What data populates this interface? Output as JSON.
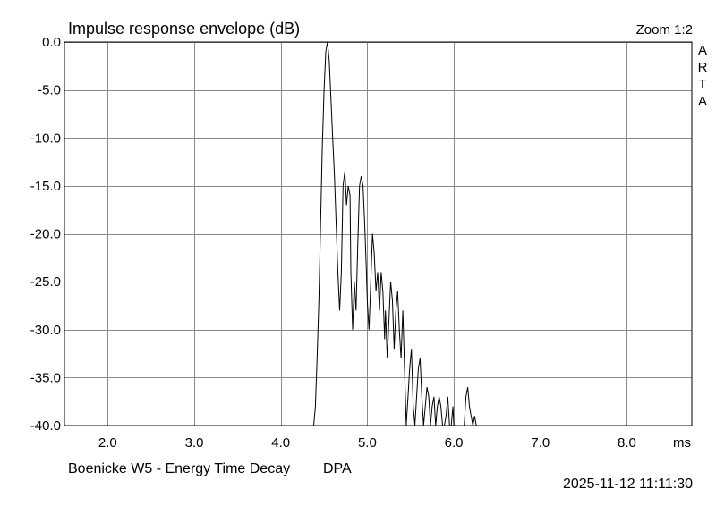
{
  "chart_data": {
    "type": "line",
    "title": "Impulse response envelope (dB)",
    "xlabel": "ms",
    "ylabel": "",
    "xlim": [
      1.5,
      8.75
    ],
    "ylim": [
      -40,
      0
    ],
    "x_ticks": [
      2.0,
      3.0,
      4.0,
      5.0,
      6.0,
      7.0,
      8.0
    ],
    "x_tick_labels": [
      "2.0",
      "3.0",
      "4.0",
      "5.0",
      "6.0",
      "7.0",
      "8.0"
    ],
    "y_ticks": [
      0,
      -5,
      -10,
      -15,
      -20,
      -25,
      -30,
      -35,
      -40
    ],
    "y_tick_labels": [
      "0.0",
      "-5.0",
      "-10.0",
      "-15.0",
      "-20.0",
      "-25.0",
      "-30.0",
      "-35.0",
      "-40.0"
    ],
    "grid": true,
    "series": [
      {
        "color": "#000000",
        "points": [
          [
            1.5,
            -40
          ],
          [
            4.38,
            -40
          ],
          [
            4.4,
            -38
          ],
          [
            4.42,
            -33
          ],
          [
            4.44,
            -27
          ],
          [
            4.46,
            -19
          ],
          [
            4.48,
            -11
          ],
          [
            4.5,
            -5
          ],
          [
            4.52,
            -1
          ],
          [
            4.54,
            0
          ],
          [
            4.56,
            -2
          ],
          [
            4.58,
            -6
          ],
          [
            4.6,
            -10
          ],
          [
            4.62,
            -14
          ],
          [
            4.64,
            -19
          ],
          [
            4.66,
            -24
          ],
          [
            4.68,
            -28
          ],
          [
            4.7,
            -24
          ],
          [
            4.72,
            -15
          ],
          [
            4.74,
            -13.5
          ],
          [
            4.76,
            -17
          ],
          [
            4.78,
            -15
          ],
          [
            4.8,
            -16
          ],
          [
            4.81,
            -24
          ],
          [
            4.83,
            -30
          ],
          [
            4.85,
            -25
          ],
          [
            4.87,
            -28
          ],
          [
            4.89,
            -21
          ],
          [
            4.91,
            -15
          ],
          [
            4.93,
            -14
          ],
          [
            4.95,
            -15
          ],
          [
            4.97,
            -19
          ],
          [
            4.99,
            -24
          ],
          [
            5.0,
            -27
          ],
          [
            5.02,
            -30
          ],
          [
            5.04,
            -25
          ],
          [
            5.06,
            -20
          ],
          [
            5.08,
            -22
          ],
          [
            5.1,
            -26
          ],
          [
            5.12,
            -24
          ],
          [
            5.14,
            -28
          ],
          [
            5.16,
            -24
          ],
          [
            5.18,
            -26
          ],
          [
            5.2,
            -31
          ],
          [
            5.21,
            -28
          ],
          [
            5.23,
            -33
          ],
          [
            5.25,
            -29
          ],
          [
            5.27,
            -25
          ],
          [
            5.29,
            -27
          ],
          [
            5.31,
            -32
          ],
          [
            5.33,
            -28
          ],
          [
            5.35,
            -26
          ],
          [
            5.37,
            -30
          ],
          [
            5.39,
            -33
          ],
          [
            5.41,
            -28
          ],
          [
            5.43,
            -34
          ],
          [
            5.45,
            -40
          ],
          [
            5.47,
            -37
          ],
          [
            5.49,
            -34
          ],
          [
            5.51,
            -32
          ],
          [
            5.53,
            -38
          ],
          [
            5.55,
            -40
          ],
          [
            5.57,
            -37
          ],
          [
            5.59,
            -34
          ],
          [
            5.61,
            -33
          ],
          [
            5.63,
            -37
          ],
          [
            5.65,
            -40
          ],
          [
            5.67,
            -38
          ],
          [
            5.69,
            -36
          ],
          [
            5.71,
            -37
          ],
          [
            5.73,
            -40
          ],
          [
            5.75,
            -38
          ],
          [
            5.77,
            -37
          ],
          [
            5.79,
            -40
          ],
          [
            5.81,
            -38
          ],
          [
            5.83,
            -37
          ],
          [
            5.85,
            -38
          ],
          [
            5.87,
            -40
          ],
          [
            5.89,
            -40
          ],
          [
            5.91,
            -39
          ],
          [
            5.93,
            -37
          ],
          [
            5.95,
            -40
          ],
          [
            5.97,
            -40
          ],
          [
            5.99,
            -38
          ],
          [
            6.0,
            -40
          ],
          [
            6.02,
            -40
          ],
          [
            6.04,
            -40
          ],
          [
            6.06,
            -40
          ],
          [
            6.08,
            -40
          ],
          [
            6.1,
            -40
          ],
          [
            6.12,
            -40
          ],
          [
            6.14,
            -37
          ],
          [
            6.16,
            -36
          ],
          [
            6.18,
            -38
          ],
          [
            6.2,
            -39
          ],
          [
            6.22,
            -40
          ],
          [
            6.24,
            -39
          ],
          [
            6.26,
            -40
          ],
          [
            6.28,
            -40
          ],
          [
            8.75,
            -40
          ]
        ]
      }
    ]
  },
  "labels": {
    "title": "Impulse response envelope (dB)",
    "zoom": "Zoom 1:2",
    "brand_letters": [
      "A",
      "R",
      "T",
      "A"
    ],
    "caption": "Boenicke W5 - Energy Time Decay",
    "caption_tag": "DPA",
    "timestamp": "2025-11-12  11:11:30"
  }
}
